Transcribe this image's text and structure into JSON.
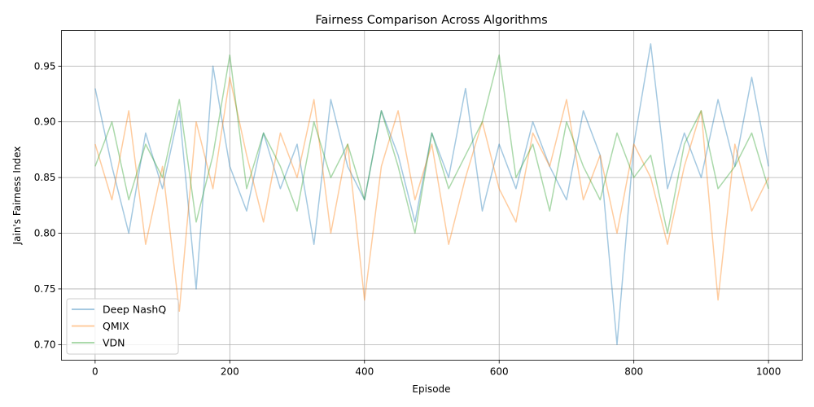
{
  "chart_data": {
    "type": "line",
    "title": "Fairness Comparison Across Algorithms",
    "xlabel": "Episode",
    "ylabel": "Jain's Fairness Index",
    "xlim": [
      -50,
      1050
    ],
    "ylim": [
      0.686,
      0.982
    ],
    "x_ticks": [
      0,
      200,
      400,
      600,
      800,
      1000
    ],
    "y_ticks": [
      0.7,
      0.75,
      0.8,
      0.85,
      0.9,
      0.95
    ],
    "x_tick_labels": [
      "0",
      "200",
      "400",
      "600",
      "800",
      "1000"
    ],
    "y_tick_labels": [
      "0.70",
      "0.75",
      "0.80",
      "0.85",
      "0.90",
      "0.95"
    ],
    "grid": true,
    "legend_position": "lower-left",
    "x_sampled": [
      0,
      25,
      50,
      75,
      100,
      125,
      150,
      175,
      200,
      225,
      250,
      275,
      300,
      325,
      350,
      375,
      400,
      425,
      450,
      475,
      500,
      525,
      550,
      575,
      600,
      625,
      650,
      675,
      700,
      725,
      750,
      775,
      800,
      825,
      850,
      875,
      900,
      925,
      950,
      975,
      1000
    ],
    "series": [
      {
        "name": "Deep NashQ",
        "color": "#1f77b4",
        "alpha": 0.4,
        "values": [
          0.93,
          0.86,
          0.8,
          0.89,
          0.84,
          0.91,
          0.75,
          0.95,
          0.86,
          0.82,
          0.89,
          0.84,
          0.88,
          0.79,
          0.92,
          0.86,
          0.83,
          0.91,
          0.87,
          0.81,
          0.89,
          0.85,
          0.93,
          0.82,
          0.88,
          0.84,
          0.9,
          0.86,
          0.83,
          0.91,
          0.87,
          0.7,
          0.88,
          0.97,
          0.84,
          0.89,
          0.85,
          0.92,
          0.86,
          0.94,
          0.86
        ]
      },
      {
        "name": "QMIX",
        "color": "#ff7f0e",
        "alpha": 0.4,
        "values": [
          0.88,
          0.83,
          0.91,
          0.79,
          0.86,
          0.73,
          0.9,
          0.84,
          0.94,
          0.87,
          0.81,
          0.89,
          0.85,
          0.92,
          0.8,
          0.88,
          0.74,
          0.86,
          0.91,
          0.83,
          0.88,
          0.79,
          0.85,
          0.9,
          0.84,
          0.81,
          0.89,
          0.86,
          0.92,
          0.83,
          0.87,
          0.8,
          0.88,
          0.85,
          0.79,
          0.86,
          0.91,
          0.74,
          0.88,
          0.82,
          0.85
        ]
      },
      {
        "name": "VDN",
        "color": "#2ca02c",
        "alpha": 0.4,
        "values": [
          0.86,
          0.9,
          0.83,
          0.88,
          0.85,
          0.92,
          0.81,
          0.87,
          0.96,
          0.84,
          0.89,
          0.86,
          0.82,
          0.9,
          0.85,
          0.88,
          0.83,
          0.91,
          0.86,
          0.8,
          0.89,
          0.84,
          0.87,
          0.9,
          0.96,
          0.85,
          0.88,
          0.82,
          0.9,
          0.86,
          0.83,
          0.89,
          0.85,
          0.87,
          0.8,
          0.88,
          0.91,
          0.84,
          0.86,
          0.89,
          0.84
        ]
      }
    ]
  }
}
